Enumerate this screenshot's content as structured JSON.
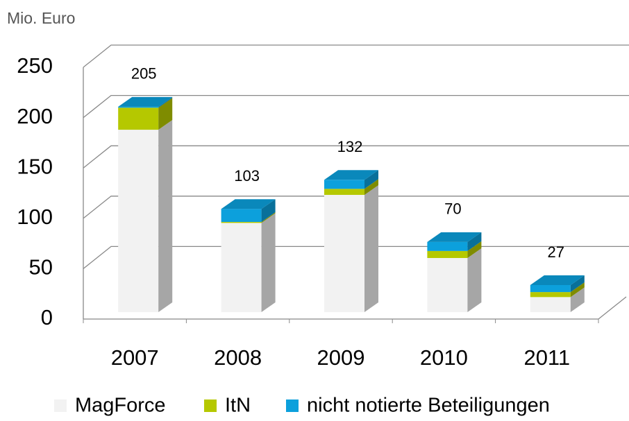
{
  "chart_data": {
    "type": "bar3d_stacked",
    "y_axis_label": "Mio. Euro",
    "categories": [
      "2007",
      "2008",
      "2009",
      "2010",
      "2011"
    ],
    "series": [
      {
        "name": "MagForce",
        "color": "#f2f2f2",
        "values": [
          182,
          89,
          117,
          54,
          15
        ]
      },
      {
        "name": "ItN",
        "color": "#b5c800",
        "values": [
          22,
          1,
          6,
          7,
          5
        ]
      },
      {
        "name": "nicht notierte Beteiligungen",
        "color": "#0ca0dc",
        "values": [
          1,
          13,
          9,
          9,
          7
        ]
      }
    ],
    "totals": [
      205,
      103,
      132,
      70,
      27
    ],
    "ylim": [
      0,
      250
    ],
    "yticks": [
      0,
      50,
      100,
      150,
      200,
      250
    ],
    "grid": true,
    "legend": "bottom"
  }
}
